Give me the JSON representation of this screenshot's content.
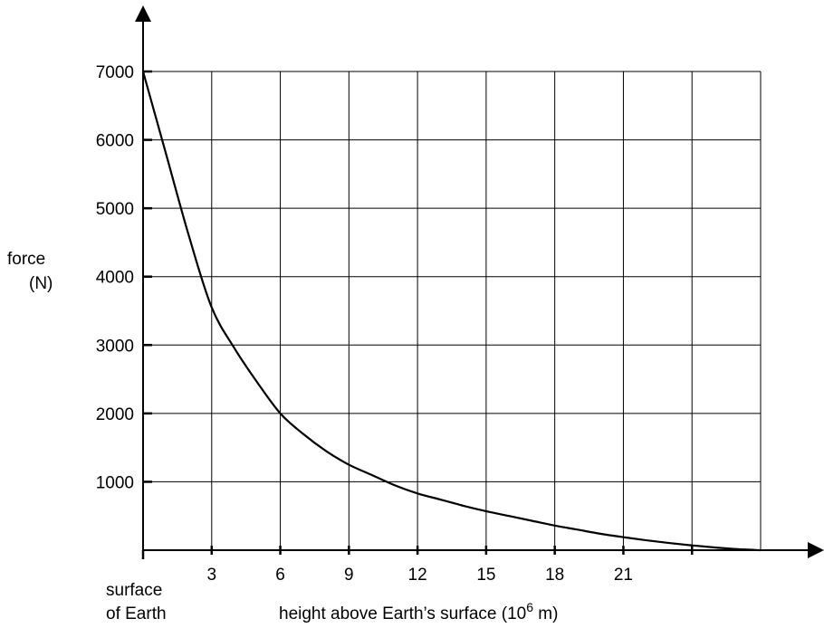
{
  "chart_data": {
    "type": "line",
    "xlabel": {
      "prefix": "height above Earth’s surface (10",
      "superscript": "6",
      "suffix": " m)"
    },
    "ylabel": {
      "line1": "force",
      "line2": "(N)"
    },
    "x_origin_label": {
      "line1": "surface",
      "line2": "of Earth"
    },
    "x_ticks": [
      3,
      6,
      9,
      12,
      15,
      18,
      21,
      24,
      27
    ],
    "x_tick_labels": [
      "3",
      "6",
      "9",
      "12",
      "15",
      "18",
      "21"
    ],
    "y_ticks": [
      1000,
      2000,
      3000,
      4000,
      5000,
      6000,
      7000
    ],
    "y_tick_labels": [
      "1000",
      "2000",
      "3000",
      "4000",
      "5000",
      "6000",
      "7000"
    ],
    "xlim": [
      0,
      27
    ],
    "ylim": [
      0,
      7000
    ],
    "grid": true,
    "series": [
      {
        "x": [
          0,
          1,
          2,
          3,
          4,
          5,
          6,
          7,
          8,
          9,
          10,
          11,
          12,
          13,
          14,
          15,
          16,
          17,
          18,
          19,
          20,
          21,
          22,
          23,
          24,
          25,
          26,
          27
        ],
        "y": [
          7000,
          5800,
          4600,
          3550,
          2950,
          2450,
          2000,
          1700,
          1450,
          1250,
          1100,
          950,
          830,
          740,
          650,
          570,
          500,
          430,
          360,
          300,
          240,
          190,
          145,
          105,
          70,
          40,
          15,
          0
        ]
      }
    ]
  }
}
